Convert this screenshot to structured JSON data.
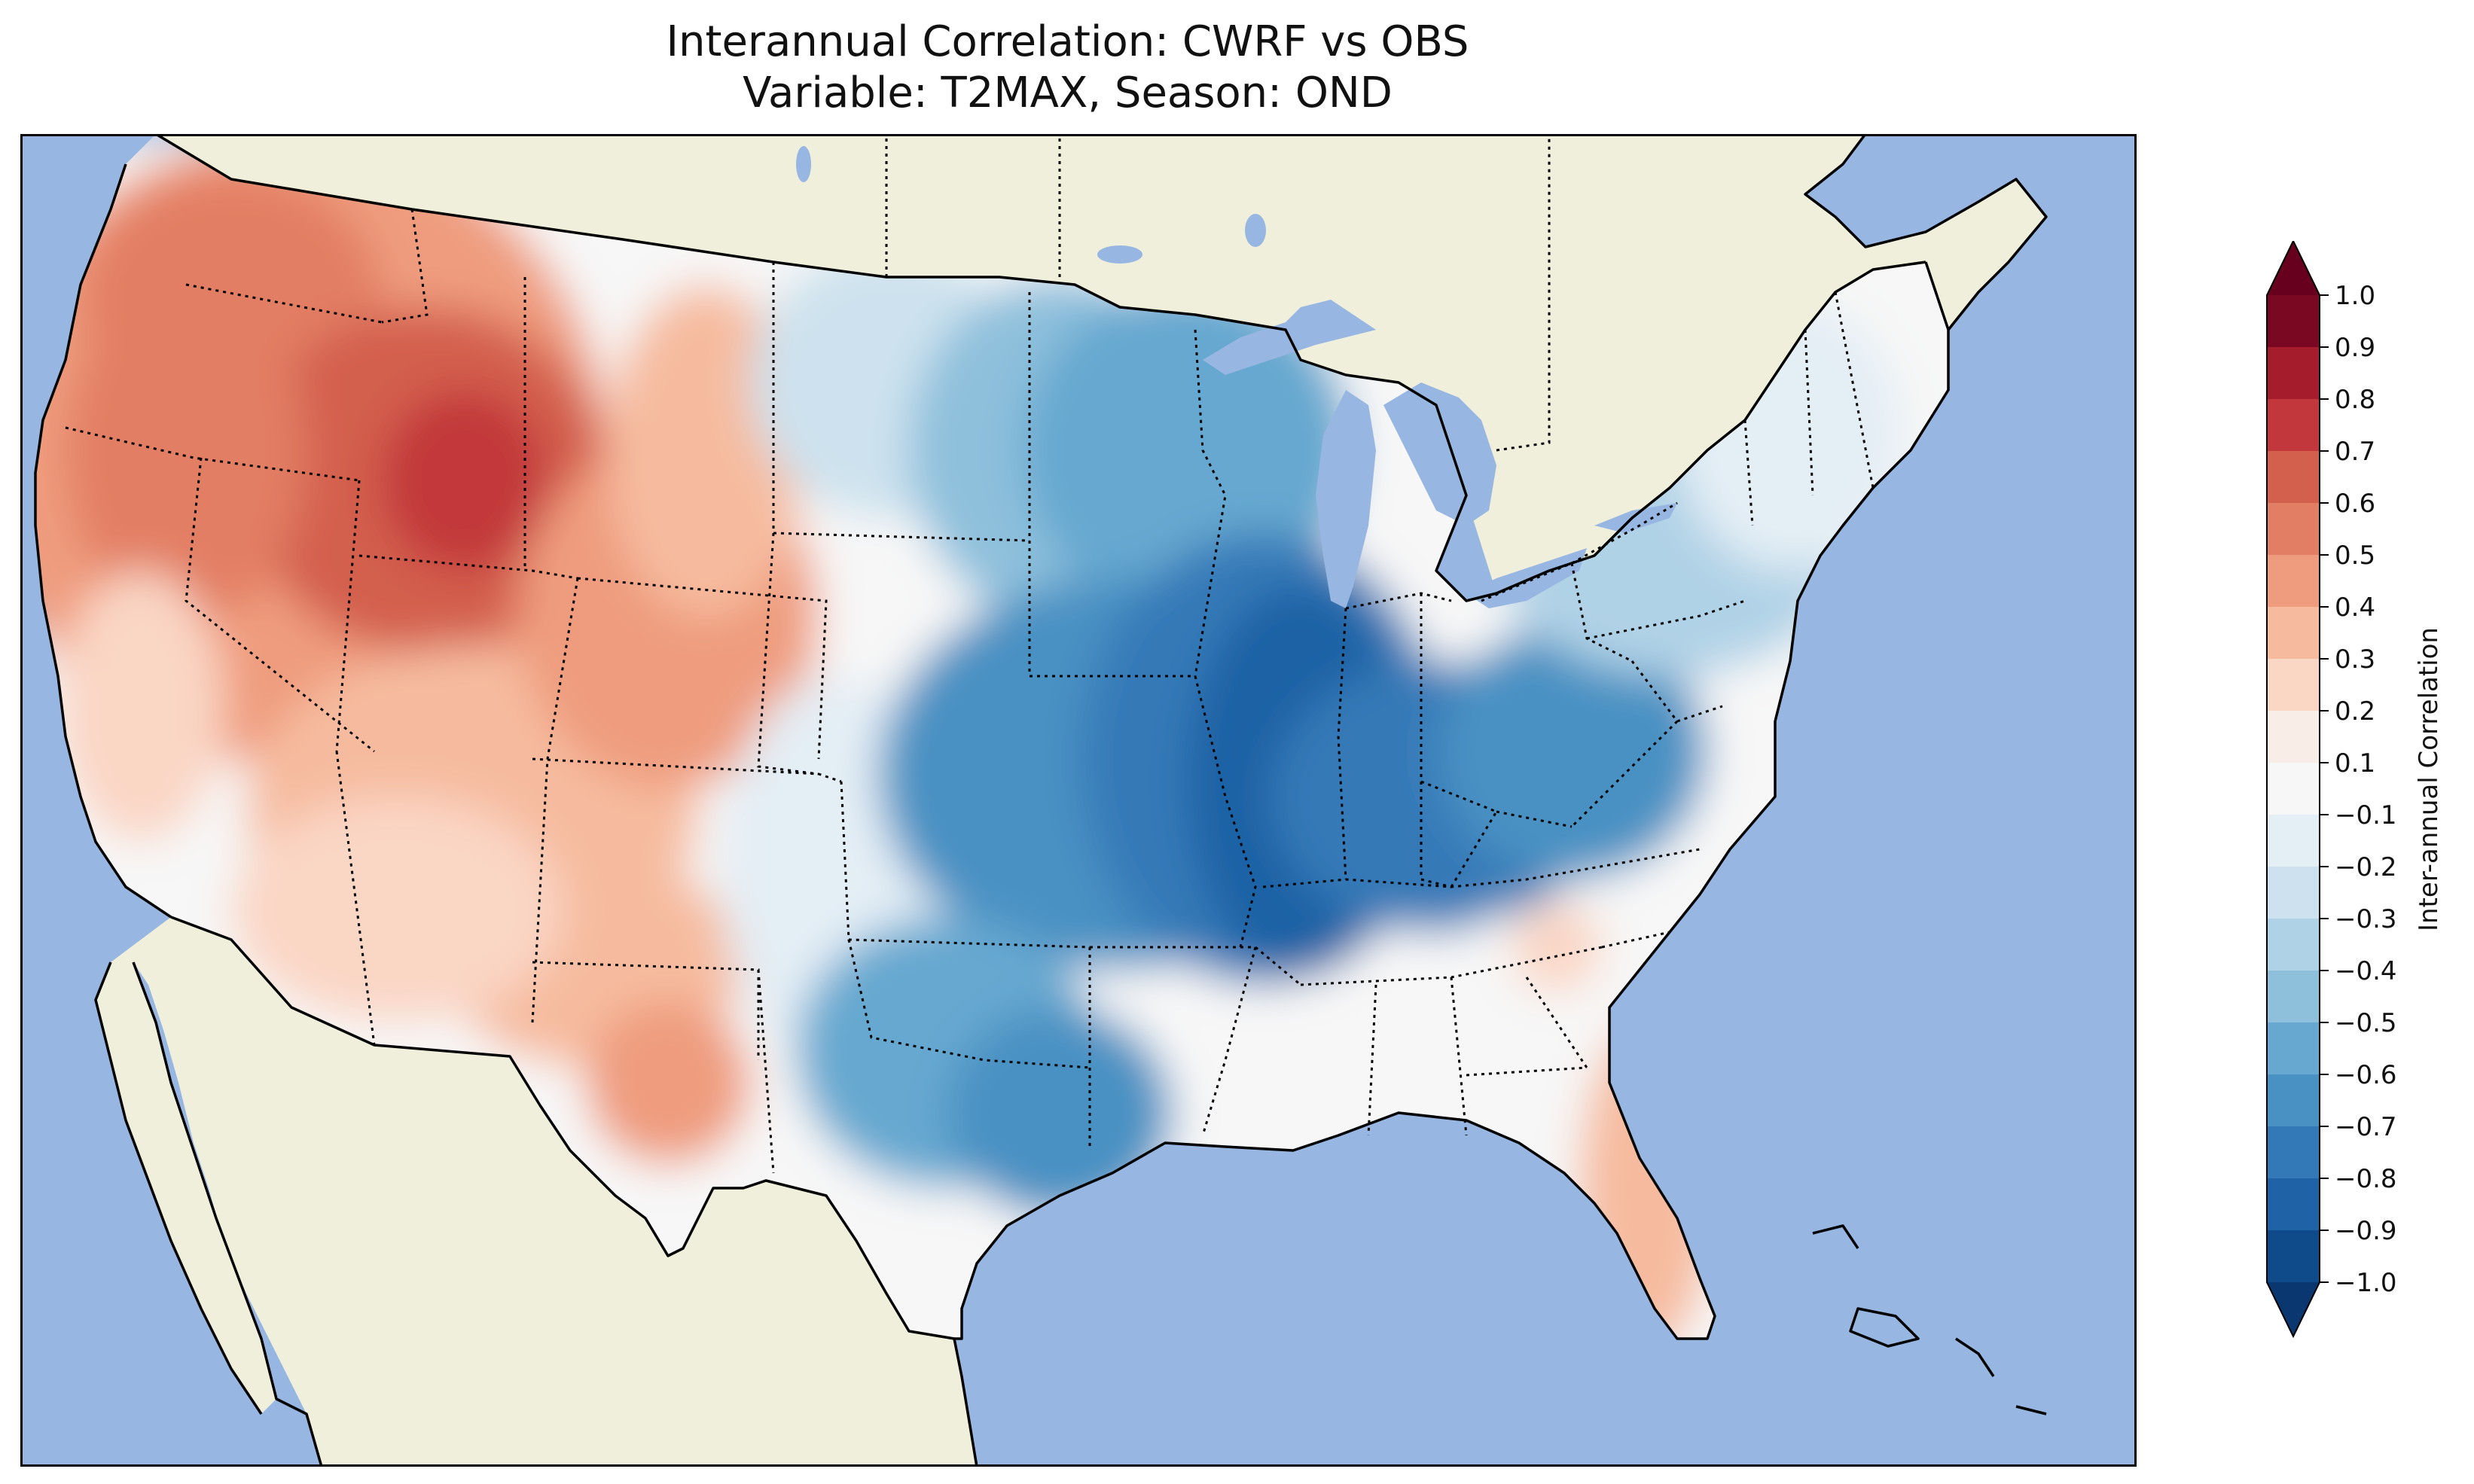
{
  "title": {
    "line1": "Interannual Correlation: CWRF vs OBS",
    "line2": "Variable: T2MAX, Season: OND"
  },
  "colors": {
    "ocean": "#97b6e1",
    "land": "#efefdb",
    "lakes": "#97b6e1"
  },
  "colorbar": {
    "label": "Inter-annual Correlation",
    "ticks": [
      "1.0",
      "0.9",
      "0.8",
      "0.7",
      "0.6",
      "0.5",
      "0.4",
      "0.3",
      "0.2",
      "0.1",
      "−0.1",
      "−0.2",
      "−0.3",
      "−0.4",
      "−0.5",
      "−0.6",
      "−0.7",
      "−0.8",
      "−0.9",
      "−1.0"
    ],
    "levels": [
      0.95,
      0.85,
      0.75,
      0.65,
      0.55,
      0.45,
      0.35,
      0.25,
      0.15,
      0.0,
      -0.15,
      -0.25,
      -0.35,
      -0.45,
      -0.55,
      -0.65,
      -0.75,
      -0.85,
      -0.95
    ],
    "level_colors": [
      "#7a0822",
      "#a51d2d",
      "#c2373b",
      "#d35f4d",
      "#e27e64",
      "#ef9c7e",
      "#f6bb9f",
      "#fad6c5",
      "#f9eee7",
      "#f7f7f7",
      "#e4eef5",
      "#cde2ee",
      "#b0d2e6",
      "#8ec0dc",
      "#66a8d0",
      "#4a91c3",
      "#3479b7",
      "#1f62a5",
      "#0f4a8a"
    ],
    "extend_low_color": "#0b3770",
    "extend_high_color": "#67001f"
  },
  "map_field": {
    "variable": "T2MAX",
    "season": "OND",
    "regions": [
      {
        "name": "pacific-northwest",
        "r": 0.45
      },
      {
        "name": "idaho-wyoming-core",
        "r": 0.75
      },
      {
        "name": "great-basin",
        "r": 0.5
      },
      {
        "name": "southwest",
        "r": 0.3
      },
      {
        "name": "northern-plains",
        "r": -0.25
      },
      {
        "name": "upper-midwest",
        "r": -0.6
      },
      {
        "name": "mississippi-valley",
        "r": -0.8
      },
      {
        "name": "ohio-valley",
        "r": -0.7
      },
      {
        "name": "south-central-plains",
        "r": -0.55
      },
      {
        "name": "texas-coast",
        "r": -0.4
      },
      {
        "name": "northeast",
        "r": -0.3
      },
      {
        "name": "southeast",
        "r": -0.1
      },
      {
        "name": "florida",
        "r": 0.3
      }
    ]
  }
}
